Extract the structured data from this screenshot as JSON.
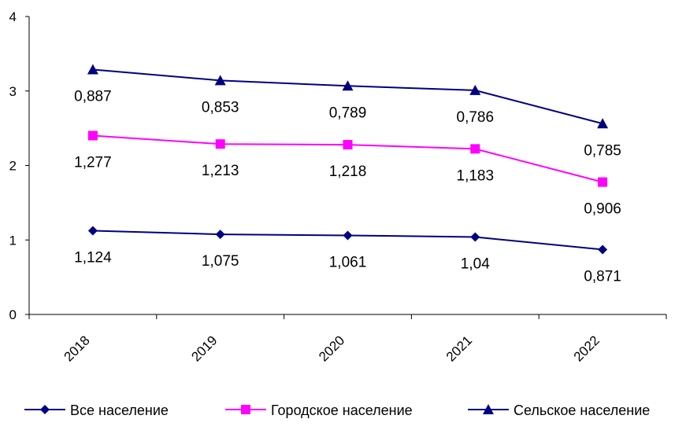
{
  "chart_data": {
    "type": "line",
    "title": "",
    "xlabel": "",
    "ylabel": "",
    "categories": [
      "2018",
      "2019",
      "2020",
      "2021",
      "2022"
    ],
    "ylim": [
      0,
      4
    ],
    "yticks": [
      0,
      1,
      2,
      3,
      4
    ],
    "grid": false,
    "legend_position": "bottom",
    "series": [
      {
        "name": "Все население",
        "values": [
          1.124,
          1.075,
          1.061,
          1.04,
          0.871
        ],
        "labels": [
          "1,124",
          "1,075",
          "1,061",
          "1,04",
          "0,871"
        ],
        "color": "#000080",
        "marker": "diamond"
      },
      {
        "name": "Городское население",
        "values": [
          2.401,
          2.288,
          2.279,
          2.223,
          1.777
        ],
        "labels": [
          "1,277",
          "1,213",
          "1,218",
          "1,183",
          "0,906"
        ],
        "color": "#FF00FF",
        "marker": "square"
      },
      {
        "name": "Сельское население",
        "values": [
          3.288,
          3.141,
          3.068,
          3.009,
          2.562
        ],
        "labels": [
          "0,887",
          "0,853",
          "0,789",
          "0,786",
          "0,785"
        ],
        "color": "#000080",
        "marker": "triangle"
      }
    ]
  }
}
